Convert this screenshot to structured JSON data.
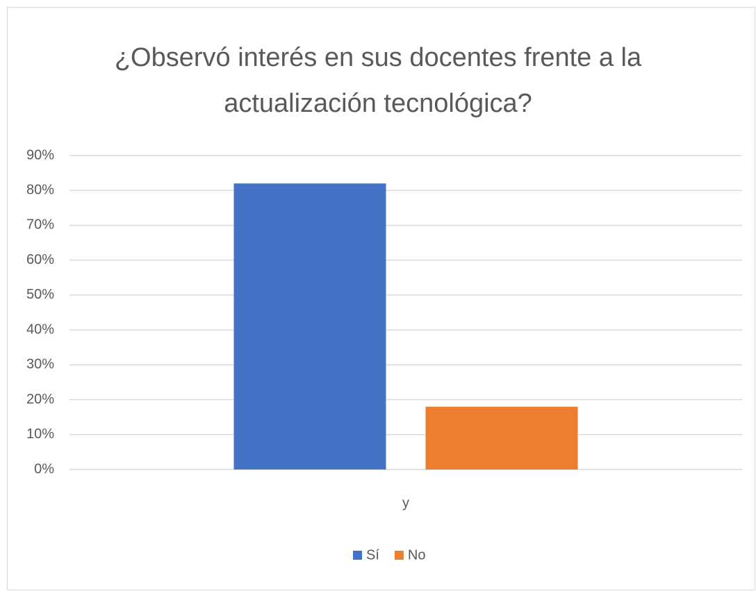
{
  "chart_data": {
    "type": "bar",
    "title": "¿Observó interés en sus docentes frente a la actualización tecnológica?",
    "categories": [
      "y"
    ],
    "series": [
      {
        "name": "Sí",
        "color": "#4472c4",
        "values": [
          82
        ]
      },
      {
        "name": "No",
        "color": "#ed7d31",
        "values": [
          18
        ]
      }
    ],
    "ylim": [
      0,
      90
    ],
    "yticks": [
      {
        "value": 0,
        "label": "0%"
      },
      {
        "value": 10,
        "label": "10%"
      },
      {
        "value": 20,
        "label": "20%"
      },
      {
        "value": 30,
        "label": "30%"
      },
      {
        "value": 40,
        "label": "40%"
      },
      {
        "value": 50,
        "label": "50%"
      },
      {
        "value": 60,
        "label": "60%"
      },
      {
        "value": 70,
        "label": "70%"
      },
      {
        "value": 80,
        "label": "80%"
      },
      {
        "value": 90,
        "label": "90%"
      }
    ],
    "grid": true,
    "legend": "bottom"
  }
}
